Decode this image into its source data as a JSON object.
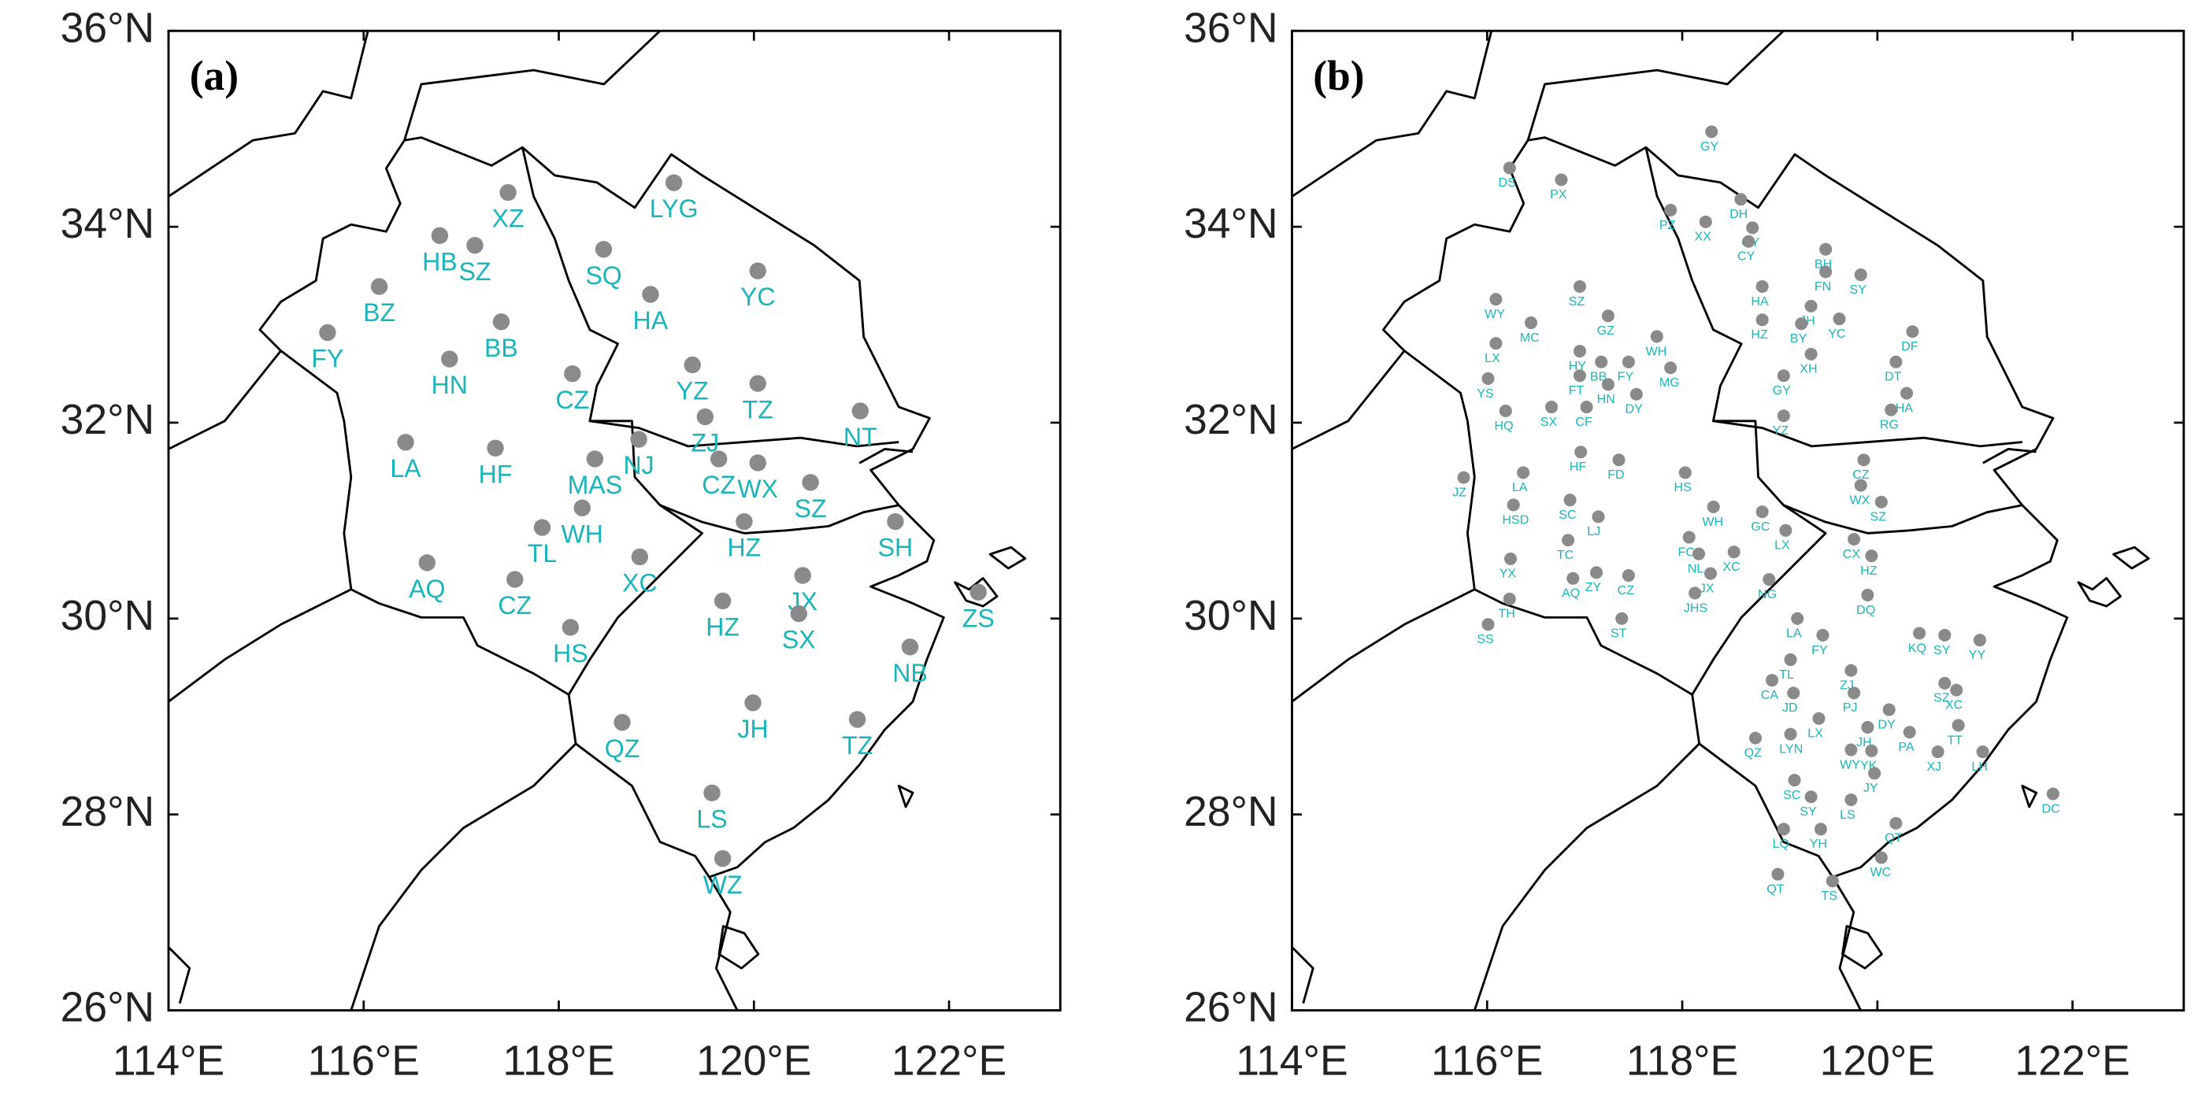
{
  "panels": [
    {
      "label": "(a)",
      "xlim": [
        114,
        123.14
      ],
      "ylim": [
        26,
        36
      ],
      "xticks": [
        {
          "value": 114,
          "label": "114°E"
        },
        {
          "value": 116,
          "label": "116°E"
        },
        {
          "value": 118,
          "label": "118°E"
        },
        {
          "value": 120,
          "label": "120°E"
        },
        {
          "value": 122,
          "label": "122°E"
        }
      ],
      "yticks": [
        {
          "value": 26,
          "label": "26°N"
        },
        {
          "value": 28,
          "label": "28°N"
        },
        {
          "value": 30,
          "label": "30°N"
        },
        {
          "value": 32,
          "label": "32°N"
        },
        {
          "value": 34,
          "label": "34°N"
        },
        {
          "value": 36,
          "label": "36°N"
        }
      ],
      "stations": [
        {
          "label": "XZ",
          "lon": 117.48,
          "lat": 34.35
        },
        {
          "label": "LYG",
          "lon": 119.18,
          "lat": 34.45
        },
        {
          "label": "HB",
          "lon": 116.78,
          "lat": 33.91
        },
        {
          "label": "SZ",
          "lon": 117.14,
          "lat": 33.81
        },
        {
          "label": "SQ",
          "lon": 118.46,
          "lat": 33.77
        },
        {
          "label": "YC",
          "lon": 120.04,
          "lat": 33.55
        },
        {
          "label": "BZ",
          "lon": 116.16,
          "lat": 33.39
        },
        {
          "label": "HA",
          "lon": 118.94,
          "lat": 33.31
        },
        {
          "label": "BB",
          "lon": 117.41,
          "lat": 33.03
        },
        {
          "label": "FY",
          "lon": 115.63,
          "lat": 32.92
        },
        {
          "label": "HN",
          "lon": 116.88,
          "lat": 32.65
        },
        {
          "label": "YZ",
          "lon": 119.37,
          "lat": 32.59
        },
        {
          "label": "CZ",
          "lon": 118.14,
          "lat": 32.5
        },
        {
          "label": "TZ",
          "lon": 120.04,
          "lat": 32.4
        },
        {
          "label": "NT",
          "lon": 121.09,
          "lat": 32.12
        },
        {
          "label": "ZJ",
          "lon": 119.5,
          "lat": 32.06
        },
        {
          "label": "LA",
          "lon": 116.43,
          "lat": 31.8
        },
        {
          "label": "HF",
          "lon": 117.35,
          "lat": 31.74
        },
        {
          "label": "NJ",
          "lon": 118.82,
          "lat": 31.83
        },
        {
          "label": "MAS",
          "lon": 118.37,
          "lat": 31.63
        },
        {
          "label": "CZ",
          "lon": 119.64,
          "lat": 31.63
        },
        {
          "label": "WX",
          "lon": 120.04,
          "lat": 31.59
        },
        {
          "label": "SZ",
          "lon": 120.58,
          "lat": 31.39
        },
        {
          "label": "WH",
          "lon": 118.24,
          "lat": 31.13
        },
        {
          "label": "TL",
          "lon": 117.83,
          "lat": 30.93
        },
        {
          "label": "HZ",
          "lon": 119.9,
          "lat": 30.99
        },
        {
          "label": "SH",
          "lon": 121.45,
          "lat": 30.99
        },
        {
          "label": "AQ",
          "lon": 116.65,
          "lat": 30.57
        },
        {
          "label": "XC",
          "lon": 118.83,
          "lat": 30.63
        },
        {
          "label": "CZ",
          "lon": 117.55,
          "lat": 30.4
        },
        {
          "label": "JX",
          "lon": 120.5,
          "lat": 30.44
        },
        {
          "label": "HZ",
          "lon": 119.68,
          "lat": 30.18
        },
        {
          "label": "ZS",
          "lon": 122.3,
          "lat": 30.27
        },
        {
          "label": "SX",
          "lon": 120.46,
          "lat": 30.05
        },
        {
          "label": "HS",
          "lon": 118.12,
          "lat": 29.91
        },
        {
          "label": "NB",
          "lon": 121.6,
          "lat": 29.71
        },
        {
          "label": "JH",
          "lon": 119.99,
          "lat": 29.14
        },
        {
          "label": "QZ",
          "lon": 118.65,
          "lat": 28.94
        },
        {
          "label": "TZ",
          "lon": 121.06,
          "lat": 28.97
        },
        {
          "label": "LS",
          "lon": 119.57,
          "lat": 28.22
        },
        {
          "label": "WZ",
          "lon": 119.68,
          "lat": 27.55
        }
      ]
    },
    {
      "label": "(b)",
      "xlim": [
        114,
        123.14
      ],
      "ylim": [
        26,
        36
      ],
      "xticks": [
        {
          "value": 114,
          "label": "114°E"
        },
        {
          "value": 116,
          "label": "116°E"
        },
        {
          "value": 118,
          "label": "118°E"
        },
        {
          "value": 120,
          "label": "120°E"
        },
        {
          "value": 122,
          "label": "122°E"
        }
      ],
      "yticks": [
        {
          "value": 26,
          "label": "26°N"
        },
        {
          "value": 28,
          "label": "28°N"
        },
        {
          "value": 30,
          "label": "30°N"
        },
        {
          "value": 32,
          "label": "32°N"
        },
        {
          "value": 34,
          "label": "34°N"
        },
        {
          "value": 36,
          "label": "36°N"
        }
      ],
      "stations": [
        {
          "label": "GY",
          "lon": 118.3,
          "lat": 34.97
        },
        {
          "label": "DS",
          "lon": 116.23,
          "lat": 34.6
        },
        {
          "label": "PX",
          "lon": 116.76,
          "lat": 34.48
        },
        {
          "label": "PZ",
          "lon": 117.88,
          "lat": 34.17
        },
        {
          "label": "XX",
          "lon": 118.24,
          "lat": 34.05
        },
        {
          "label": "DH",
          "lon": 118.6,
          "lat": 34.28
        },
        {
          "label": "GY",
          "lon": 118.72,
          "lat": 33.99
        },
        {
          "label": "CY",
          "lon": 118.68,
          "lat": 33.85
        },
        {
          "label": "BH",
          "lon": 119.47,
          "lat": 33.77
        },
        {
          "label": "FN",
          "lon": 119.47,
          "lat": 33.54
        },
        {
          "label": "SY",
          "lon": 119.83,
          "lat": 33.51
        },
        {
          "label": "HA",
          "lon": 118.82,
          "lat": 33.39
        },
        {
          "label": "JH",
          "lon": 119.32,
          "lat": 33.19
        },
        {
          "label": "WY",
          "lon": 116.09,
          "lat": 33.26
        },
        {
          "label": "SZ",
          "lon": 116.95,
          "lat": 33.39
        },
        {
          "label": "MC",
          "lon": 116.45,
          "lat": 33.02
        },
        {
          "label": "GZ",
          "lon": 117.24,
          "lat": 33.09
        },
        {
          "label": "YC",
          "lon": 119.61,
          "lat": 33.06
        },
        {
          "label": "HZ",
          "lon": 118.82,
          "lat": 33.05
        },
        {
          "label": "BY",
          "lon": 119.22,
          "lat": 33.01
        },
        {
          "label": "DF",
          "lon": 120.36,
          "lat": 32.93
        },
        {
          "label": "LX",
          "lon": 116.09,
          "lat": 32.81
        },
        {
          "label": "HY",
          "lon": 116.95,
          "lat": 32.73
        },
        {
          "label": "WH",
          "lon": 117.74,
          "lat": 32.88
        },
        {
          "label": "BB",
          "lon": 117.17,
          "lat": 32.62
        },
        {
          "label": "FY",
          "lon": 117.45,
          "lat": 32.62
        },
        {
          "label": "XH",
          "lon": 119.32,
          "lat": 32.7
        },
        {
          "label": "DT",
          "lon": 120.19,
          "lat": 32.62
        },
        {
          "label": "MG",
          "lon": 117.88,
          "lat": 32.56
        },
        {
          "label": "YS",
          "lon": 116.01,
          "lat": 32.45
        },
        {
          "label": "FT",
          "lon": 116.95,
          "lat": 32.48
        },
        {
          "label": "HN",
          "lon": 117.24,
          "lat": 32.39
        },
        {
          "label": "GY",
          "lon": 119.04,
          "lat": 32.48
        },
        {
          "label": "HA",
          "lon": 120.3,
          "lat": 32.3
        },
        {
          "label": "DY",
          "lon": 117.53,
          "lat": 32.29
        },
        {
          "label": "HQ",
          "lon": 116.19,
          "lat": 32.12
        },
        {
          "label": "SX",
          "lon": 116.66,
          "lat": 32.16
        },
        {
          "label": "CF",
          "lon": 117.02,
          "lat": 32.16
        },
        {
          "label": "RG",
          "lon": 120.14,
          "lat": 32.13
        },
        {
          "label": "YZ",
          "lon": 119.04,
          "lat": 32.07
        },
        {
          "label": "HF",
          "lon": 116.96,
          "lat": 31.7
        },
        {
          "label": "FD",
          "lon": 117.35,
          "lat": 31.62
        },
        {
          "label": "CZ",
          "lon": 119.86,
          "lat": 31.62
        },
        {
          "label": "LA",
          "lon": 116.37,
          "lat": 31.49
        },
        {
          "label": "JZ",
          "lon": 115.76,
          "lat": 31.44
        },
        {
          "label": "WX",
          "lon": 119.83,
          "lat": 31.36
        },
        {
          "label": "SC",
          "lon": 116.85,
          "lat": 31.21
        },
        {
          "label": "SZ",
          "lon": 120.04,
          "lat": 31.19
        },
        {
          "label": "HS",
          "lon": 118.03,
          "lat": 31.49
        },
        {
          "label": "HSD",
          "lon": 116.27,
          "lat": 31.16
        },
        {
          "label": "LJ",
          "lon": 117.14,
          "lat": 31.04
        },
        {
          "label": "WH",
          "lon": 118.32,
          "lat": 31.14
        },
        {
          "label": "GC",
          "lon": 118.82,
          "lat": 31.09
        },
        {
          "label": "LX",
          "lon": 119.06,
          "lat": 30.9
        },
        {
          "label": "FC",
          "lon": 118.07,
          "lat": 30.83
        },
        {
          "label": "TC",
          "lon": 116.83,
          "lat": 30.8
        },
        {
          "label": "CX",
          "lon": 119.76,
          "lat": 30.81
        },
        {
          "label": "XC",
          "lon": 118.53,
          "lat": 30.68
        },
        {
          "label": "NL",
          "lon": 118.17,
          "lat": 30.66
        },
        {
          "label": "YX",
          "lon": 116.24,
          "lat": 30.61
        },
        {
          "label": "HZ",
          "lon": 119.94,
          "lat": 30.64
        },
        {
          "label": "ZY",
          "lon": 117.12,
          "lat": 30.47
        },
        {
          "label": "JX",
          "lon": 118.29,
          "lat": 30.46
        },
        {
          "label": "CZ",
          "lon": 117.45,
          "lat": 30.44
        },
        {
          "label": "AQ",
          "lon": 116.88,
          "lat": 30.41
        },
        {
          "label": "NG",
          "lon": 118.89,
          "lat": 30.4
        },
        {
          "label": "DQ",
          "lon": 119.9,
          "lat": 30.24
        },
        {
          "label": "JHS",
          "lon": 118.13,
          "lat": 30.26
        },
        {
          "label": "TH",
          "lon": 116.23,
          "lat": 30.2
        },
        {
          "label": "ST",
          "lon": 117.38,
          "lat": 30.0
        },
        {
          "label": "LA",
          "lon": 119.18,
          "lat": 30.0
        },
        {
          "label": "SS",
          "lon": 116.01,
          "lat": 29.94
        },
        {
          "label": "KQ",
          "lon": 120.43,
          "lat": 29.85
        },
        {
          "label": "FY",
          "lon": 119.44,
          "lat": 29.83
        },
        {
          "label": "SY",
          "lon": 120.69,
          "lat": 29.83
        },
        {
          "label": "YY",
          "lon": 121.05,
          "lat": 29.78
        },
        {
          "label": "TL",
          "lon": 119.11,
          "lat": 29.58
        },
        {
          "label": "ZJ",
          "lon": 119.73,
          "lat": 29.47
        },
        {
          "label": "CA",
          "lon": 118.92,
          "lat": 29.37
        },
        {
          "label": "SZ",
          "lon": 120.69,
          "lat": 29.34
        },
        {
          "label": "XC",
          "lon": 120.81,
          "lat": 29.27
        },
        {
          "label": "JD",
          "lon": 119.14,
          "lat": 29.24
        },
        {
          "label": "PJ",
          "lon": 119.76,
          "lat": 29.24
        },
        {
          "label": "DY",
          "lon": 120.12,
          "lat": 29.07
        },
        {
          "label": "LX",
          "lon": 119.4,
          "lat": 28.98
        },
        {
          "label": "TT",
          "lon": 120.83,
          "lat": 28.91
        },
        {
          "label": "JH",
          "lon": 119.9,
          "lat": 28.89
        },
        {
          "label": "PA",
          "lon": 120.33,
          "lat": 28.84
        },
        {
          "label": "LYN",
          "lon": 119.11,
          "lat": 28.82
        },
        {
          "label": "QZ",
          "lon": 118.75,
          "lat": 28.78
        },
        {
          "label": "WY",
          "lon": 119.73,
          "lat": 28.66
        },
        {
          "label": "YK",
          "lon": 119.94,
          "lat": 28.65
        },
        {
          "label": "XJ",
          "lon": 120.62,
          "lat": 28.64
        },
        {
          "label": "LH",
          "lon": 121.08,
          "lat": 28.64
        },
        {
          "label": "JY",
          "lon": 119.97,
          "lat": 28.42
        },
        {
          "label": "SC",
          "lon": 119.15,
          "lat": 28.35
        },
        {
          "label": "DC",
          "lon": 121.8,
          "lat": 28.21
        },
        {
          "label": "SY",
          "lon": 119.32,
          "lat": 28.18
        },
        {
          "label": "LS",
          "lon": 119.73,
          "lat": 28.15
        },
        {
          "label": "QT",
          "lon": 120.19,
          "lat": 27.91
        },
        {
          "label": "YH",
          "lon": 119.42,
          "lat": 27.85
        },
        {
          "label": "LQ",
          "lon": 119.04,
          "lat": 27.85
        },
        {
          "label": "WC",
          "lon": 120.04,
          "lat": 27.56
        },
        {
          "label": "QT",
          "lon": 118.98,
          "lat": 27.39
        },
        {
          "label": "TS",
          "lon": 119.54,
          "lat": 27.32
        }
      ]
    }
  ]
}
